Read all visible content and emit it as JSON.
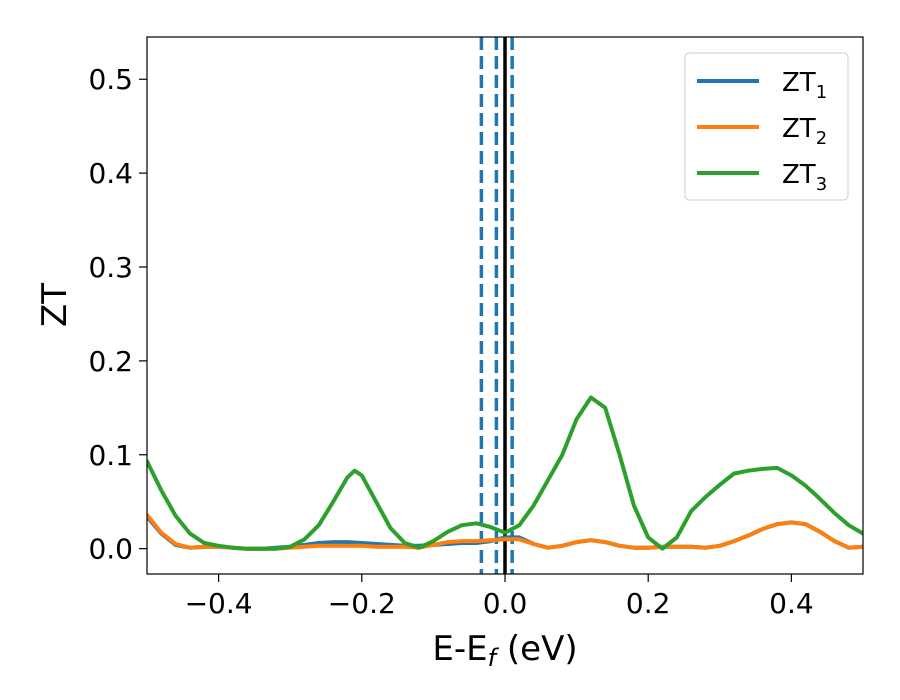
{
  "chart_data": {
    "type": "line",
    "title": "",
    "xlabel": {
      "main": "E-E",
      "sub": "f",
      "unit": " (eV)"
    },
    "ylabel": "ZT",
    "xlim": [
      -0.5,
      0.5
    ],
    "ylim": [
      -0.027,
      0.545
    ],
    "grid": false,
    "legend_position": "top-right",
    "x_ticks": [
      -0.4,
      -0.2,
      0.0,
      0.2,
      0.4
    ],
    "x_tick_labels": [
      "−0.4",
      "−0.2",
      "0.0",
      "0.2",
      "0.4"
    ],
    "y_ticks": [
      0.0,
      0.1,
      0.2,
      0.3,
      0.4,
      0.5
    ],
    "y_tick_labels": [
      "0.0",
      "0.1",
      "0.2",
      "0.3",
      "0.4",
      "0.5"
    ],
    "vertical_lines": [
      {
        "x": -0.033,
        "style": "dashed",
        "color": "#1f77b4"
      },
      {
        "x": -0.012,
        "style": "dashed",
        "color": "#1f77b4"
      },
      {
        "x": 0.0,
        "style": "solid",
        "color": "#000000"
      },
      {
        "x": 0.01,
        "style": "dashed",
        "color": "#1f77b4"
      }
    ],
    "series": [
      {
        "name": "ZT",
        "name_sub": "1",
        "color": "#1f77b4",
        "points": [
          [
            -0.5,
            0.034
          ],
          [
            -0.48,
            0.016
          ],
          [
            -0.46,
            0.004
          ],
          [
            -0.44,
            0.001
          ],
          [
            -0.42,
            0.002
          ],
          [
            -0.4,
            0.002
          ],
          [
            -0.38,
            0.001
          ],
          [
            -0.36,
            0.0
          ],
          [
            -0.34,
            0.0
          ],
          [
            -0.32,
            0.001
          ],
          [
            -0.3,
            0.002
          ],
          [
            -0.28,
            0.004
          ],
          [
            -0.26,
            0.006
          ],
          [
            -0.24,
            0.007
          ],
          [
            -0.22,
            0.007
          ],
          [
            -0.2,
            0.006
          ],
          [
            -0.18,
            0.005
          ],
          [
            -0.16,
            0.004
          ],
          [
            -0.14,
            0.003
          ],
          [
            -0.12,
            0.003
          ],
          [
            -0.1,
            0.004
          ],
          [
            -0.08,
            0.005
          ],
          [
            -0.06,
            0.006
          ],
          [
            -0.04,
            0.006
          ],
          [
            -0.02,
            0.008
          ],
          [
            0.0,
            0.012
          ],
          [
            0.02,
            0.012
          ],
          [
            0.04,
            0.005
          ],
          [
            0.06,
            0.001
          ],
          [
            0.08,
            0.003
          ],
          [
            0.1,
            0.007
          ],
          [
            0.12,
            0.009
          ],
          [
            0.14,
            0.007
          ],
          [
            0.16,
            0.003
          ],
          [
            0.18,
            0.001
          ],
          [
            0.2,
            0.001
          ],
          [
            0.22,
            0.002
          ],
          [
            0.24,
            0.002
          ],
          [
            0.26,
            0.002
          ],
          [
            0.28,
            0.001
          ],
          [
            0.3,
            0.003
          ],
          [
            0.32,
            0.008
          ],
          [
            0.34,
            0.014
          ],
          [
            0.36,
            0.021
          ],
          [
            0.38,
            0.026
          ],
          [
            0.4,
            0.028
          ],
          [
            0.42,
            0.026
          ],
          [
            0.44,
            0.018
          ],
          [
            0.46,
            0.008
          ],
          [
            0.48,
            0.001
          ],
          [
            0.5,
            0.002
          ]
        ]
      },
      {
        "name": "ZT",
        "name_sub": "2",
        "color": "#ff7f0e",
        "points": [
          [
            -0.5,
            0.036
          ],
          [
            -0.48,
            0.017
          ],
          [
            -0.46,
            0.005
          ],
          [
            -0.44,
            0.001
          ],
          [
            -0.42,
            0.002
          ],
          [
            -0.4,
            0.002
          ],
          [
            -0.38,
            0.001
          ],
          [
            -0.36,
            0.0
          ],
          [
            -0.34,
            0.0
          ],
          [
            -0.32,
            0.0
          ],
          [
            -0.3,
            0.001
          ],
          [
            -0.28,
            0.002
          ],
          [
            -0.26,
            0.003
          ],
          [
            -0.24,
            0.003
          ],
          [
            -0.22,
            0.003
          ],
          [
            -0.2,
            0.003
          ],
          [
            -0.18,
            0.002
          ],
          [
            -0.16,
            0.002
          ],
          [
            -0.14,
            0.002
          ],
          [
            -0.12,
            0.001
          ],
          [
            -0.1,
            0.004
          ],
          [
            -0.08,
            0.007
          ],
          [
            -0.06,
            0.008
          ],
          [
            -0.04,
            0.008
          ],
          [
            -0.02,
            0.009
          ],
          [
            0.0,
            0.01
          ],
          [
            0.02,
            0.01
          ],
          [
            0.04,
            0.005
          ],
          [
            0.06,
            0.001
          ],
          [
            0.08,
            0.003
          ],
          [
            0.1,
            0.007
          ],
          [
            0.12,
            0.009
          ],
          [
            0.14,
            0.007
          ],
          [
            0.16,
            0.003
          ],
          [
            0.18,
            0.001
          ],
          [
            0.2,
            0.001
          ],
          [
            0.22,
            0.002
          ],
          [
            0.24,
            0.002
          ],
          [
            0.26,
            0.002
          ],
          [
            0.28,
            0.001
          ],
          [
            0.3,
            0.003
          ],
          [
            0.32,
            0.008
          ],
          [
            0.34,
            0.014
          ],
          [
            0.36,
            0.021
          ],
          [
            0.38,
            0.026
          ],
          [
            0.4,
            0.028
          ],
          [
            0.42,
            0.026
          ],
          [
            0.44,
            0.018
          ],
          [
            0.46,
            0.008
          ],
          [
            0.48,
            0.001
          ],
          [
            0.5,
            0.002
          ]
        ]
      },
      {
        "name": "ZT",
        "name_sub": "3",
        "color": "#2ca02c",
        "points": [
          [
            -0.5,
            0.093
          ],
          [
            -0.48,
            0.062
          ],
          [
            -0.46,
            0.035
          ],
          [
            -0.44,
            0.016
          ],
          [
            -0.42,
            0.006
          ],
          [
            -0.4,
            0.003
          ],
          [
            -0.38,
            0.001
          ],
          [
            -0.36,
            0.0
          ],
          [
            -0.34,
            0.0
          ],
          [
            -0.32,
            0.0
          ],
          [
            -0.3,
            0.002
          ],
          [
            -0.28,
            0.01
          ],
          [
            -0.26,
            0.025
          ],
          [
            -0.24,
            0.05
          ],
          [
            -0.22,
            0.076
          ],
          [
            -0.21,
            0.083
          ],
          [
            -0.2,
            0.078
          ],
          [
            -0.18,
            0.05
          ],
          [
            -0.16,
            0.022
          ],
          [
            -0.14,
            0.006
          ],
          [
            -0.12,
            0.001
          ],
          [
            -0.1,
            0.008
          ],
          [
            -0.08,
            0.018
          ],
          [
            -0.06,
            0.025
          ],
          [
            -0.04,
            0.027
          ],
          [
            -0.02,
            0.023
          ],
          [
            0.0,
            0.017
          ],
          [
            0.02,
            0.025
          ],
          [
            0.04,
            0.046
          ],
          [
            0.06,
            0.073
          ],
          [
            0.08,
            0.1
          ],
          [
            0.1,
            0.138
          ],
          [
            0.12,
            0.161
          ],
          [
            0.14,
            0.15
          ],
          [
            0.16,
            0.1
          ],
          [
            0.18,
            0.046
          ],
          [
            0.2,
            0.012
          ],
          [
            0.22,
            0.0
          ],
          [
            0.24,
            0.012
          ],
          [
            0.26,
            0.04
          ],
          [
            0.28,
            0.055
          ],
          [
            0.3,
            0.068
          ],
          [
            0.32,
            0.08
          ],
          [
            0.34,
            0.083
          ],
          [
            0.36,
            0.085
          ],
          [
            0.38,
            0.086
          ],
          [
            0.4,
            0.078
          ],
          [
            0.42,
            0.067
          ],
          [
            0.44,
            0.053
          ],
          [
            0.46,
            0.038
          ],
          [
            0.48,
            0.025
          ],
          [
            0.5,
            0.016
          ]
        ]
      }
    ]
  }
}
